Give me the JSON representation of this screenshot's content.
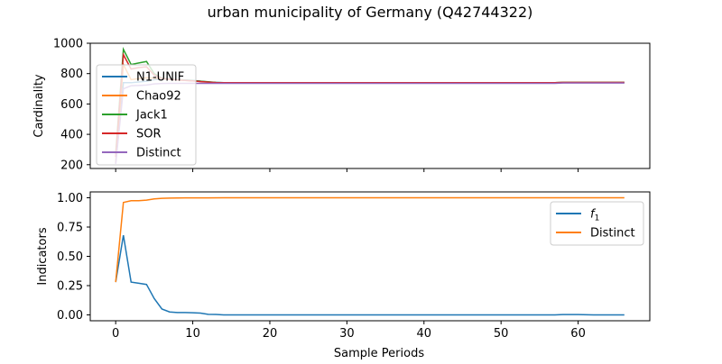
{
  "figure": {
    "title": "urban municipality of Germany (Q42744322)"
  },
  "chart_data": [
    {
      "type": "line",
      "panel": "top",
      "title": "",
      "xlabel": "",
      "ylabel": "Cardinality",
      "xlim": [
        -3.3,
        69.3
      ],
      "ylim": [
        175,
        1000
      ],
      "yticks": [
        200,
        400,
        600,
        800,
        1000
      ],
      "xticks": [
        0,
        10,
        20,
        30,
        40,
        50,
        60
      ],
      "show_xtick_labels": false,
      "grid": false,
      "legend_location": "center-left",
      "series": [
        {
          "name": "N1-UNIF",
          "color": "#1f77b4",
          "x": [
            0,
            1,
            2,
            3,
            4,
            5,
            6,
            7,
            8,
            9,
            10,
            11,
            12,
            13,
            14,
            20,
            30,
            40,
            50,
            57,
            58,
            60,
            62,
            64,
            66
          ],
          "y": [
            210,
            740,
            740,
            745,
            750,
            760,
            765,
            763,
            760,
            758,
            755,
            750,
            745,
            742,
            740,
            740,
            740,
            740,
            740,
            740,
            742,
            742,
            742,
            742,
            742
          ]
        },
        {
          "name": "Chao92",
          "color": "#ff7f0e",
          "x": [
            0,
            1,
            2,
            3,
            4,
            5,
            6,
            7,
            8,
            9,
            10,
            11,
            12,
            13,
            14,
            20,
            30,
            40,
            50,
            57,
            58,
            60,
            62,
            64,
            66
          ],
          "y": [
            210,
            860,
            760,
            768,
            772,
            770,
            768,
            762,
            758,
            755,
            752,
            748,
            744,
            741,
            740,
            740,
            740,
            740,
            740,
            740,
            742,
            742,
            742,
            742,
            742
          ]
        },
        {
          "name": "Jack1",
          "color": "#2ca02c",
          "x": [
            0,
            1,
            2,
            3,
            4,
            5,
            6,
            7,
            8,
            9,
            10,
            11,
            12,
            13,
            14,
            20,
            30,
            40,
            50,
            57,
            58,
            60,
            62,
            64,
            66
          ],
          "y": [
            270,
            960,
            860,
            870,
            880,
            800,
            770,
            765,
            760,
            757,
            754,
            750,
            746,
            742,
            740,
            740,
            740,
            740,
            740,
            740,
            742,
            742,
            742,
            742,
            742
          ]
        },
        {
          "name": "SOR",
          "color": "#d62728",
          "x": [
            0,
            1,
            2,
            3,
            4,
            5,
            6,
            7,
            8,
            9,
            10,
            11,
            12,
            13,
            14,
            20,
            30,
            40,
            50,
            57,
            58,
            60,
            62,
            64,
            66
          ],
          "y": [
            250,
            925,
            830,
            840,
            845,
            790,
            768,
            763,
            758,
            755,
            752,
            748,
            744,
            741,
            740,
            740,
            740,
            740,
            740,
            740,
            742,
            742,
            742,
            742,
            742
          ]
        },
        {
          "name": "Distinct",
          "color": "#9467bd",
          "x": [
            0,
            1,
            2,
            3,
            4,
            5,
            6,
            7,
            8,
            9,
            10,
            11,
            12,
            13,
            14,
            20,
            30,
            40,
            50,
            57,
            58,
            60,
            62,
            64,
            66
          ],
          "y": [
            205,
            700,
            720,
            722,
            725,
            732,
            735,
            736,
            736,
            736,
            736,
            736,
            736,
            736,
            736,
            736,
            736,
            736,
            736,
            736,
            738,
            738,
            738,
            738,
            738
          ]
        }
      ]
    },
    {
      "type": "line",
      "panel": "bottom",
      "title": "",
      "xlabel": "Sample Periods",
      "ylabel": "Indicators",
      "xlim": [
        -3.3,
        69.3
      ],
      "ylim": [
        -0.05,
        1.05
      ],
      "yticks": [
        0.0,
        0.25,
        0.5,
        0.75,
        1.0
      ],
      "ytick_labels": [
        "0.00",
        "0.25",
        "0.50",
        "0.75",
        "1.00"
      ],
      "xticks": [
        0,
        10,
        20,
        30,
        40,
        50,
        60
      ],
      "grid": false,
      "legend_location": "upper-right",
      "series": [
        {
          "name": "f1",
          "color": "#1f77b4",
          "x": [
            0,
            1,
            2,
            3,
            4,
            5,
            6,
            7,
            8,
            9,
            10,
            11,
            12,
            13,
            14,
            15,
            20,
            30,
            40,
            50,
            57,
            58,
            60,
            62,
            64,
            66
          ],
          "y": [
            0.28,
            0.68,
            0.28,
            0.27,
            0.26,
            0.14,
            0.05,
            0.025,
            0.02,
            0.02,
            0.018,
            0.015,
            0.005,
            0.004,
            0.0,
            0.0,
            0.0,
            0.0,
            0.0,
            0.0,
            0.0,
            0.003,
            0.003,
            0.0,
            0.0,
            0.0
          ]
        },
        {
          "name": "Distinct",
          "color": "#ff7f0e",
          "x": [
            0,
            1,
            2,
            3,
            4,
            5,
            6,
            7,
            8,
            9,
            10,
            12,
            14,
            20,
            30,
            40,
            50,
            57,
            58,
            60,
            62,
            64,
            66
          ],
          "y": [
            0.28,
            0.96,
            0.975,
            0.975,
            0.98,
            0.99,
            0.995,
            0.997,
            0.998,
            0.999,
            0.999,
            0.999,
            1.0,
            1.0,
            1.0,
            1.0,
            1.0,
            1.0,
            1.0,
            1.0,
            1.0,
            1.0,
            1.0
          ]
        }
      ]
    }
  ]
}
